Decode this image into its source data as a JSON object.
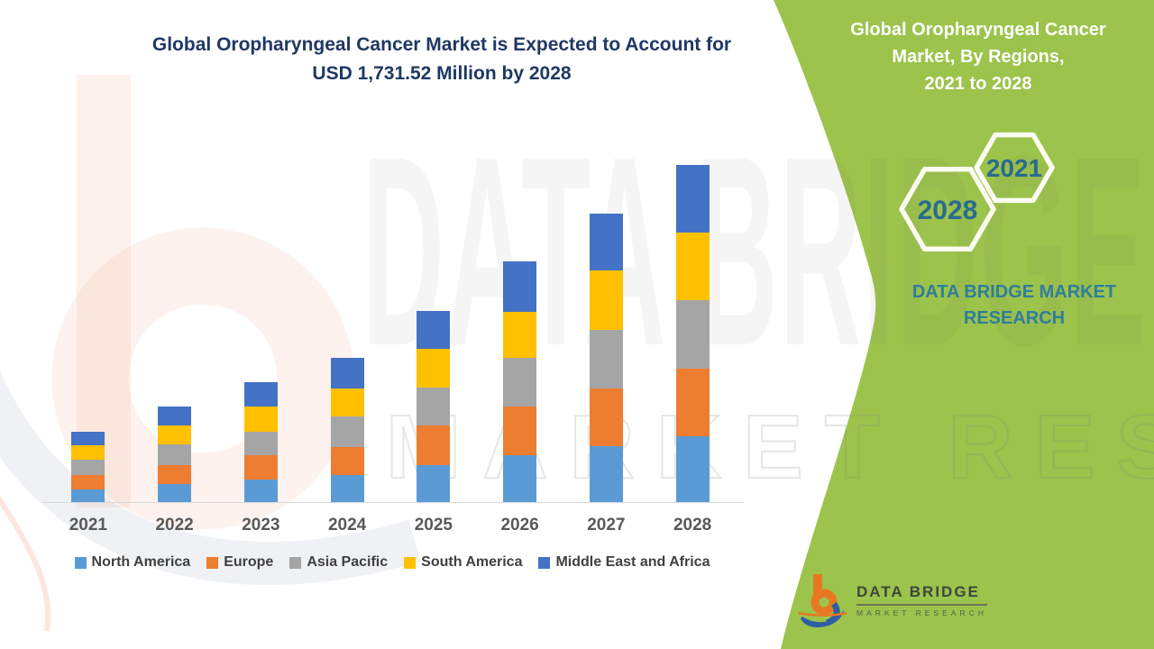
{
  "title": "Global Oropharyngeal Cancer Market is Expected to Account for\nUSD 1,731.52 Million by 2028",
  "side_panel": {
    "heading": "Global Oropharyngeal Cancer\nMarket, By Regions,\n2021 to 2028",
    "hexagons": [
      {
        "label": "2021"
      },
      {
        "label": "2028"
      }
    ],
    "brand_text": "DATA BRIDGE MARKET\nRESEARCH",
    "panel_color": "#9CC34B",
    "hex_text_color": "#296B8E",
    "brand_text_color": "#2E7E9C"
  },
  "footer_logo": {
    "name": "DATA BRIDGE",
    "subtitle": "MARKET RESEARCH",
    "mark_orange": "#E87722",
    "mark_blue": "#2E5FA3"
  },
  "watermark": {
    "row1": "DATA BRIDGE",
    "row2": "MARKET RESEARCH"
  },
  "chart_data": {
    "type": "bar",
    "stacked": true,
    "unit": "USD Million",
    "title": "Global Oropharyngeal Cancer Market is Expected to Account for USD 1,731.52 Million by 2028",
    "categories": [
      "2021",
      "2022",
      "2023",
      "2024",
      "2025",
      "2026",
      "2027",
      "2028"
    ],
    "series": [
      {
        "name": "North America",
        "color": "#5B9BD5",
        "values": [
          64,
          94,
          115,
          140,
          189,
          240,
          289,
          336
        ]
      },
      {
        "name": "Europe",
        "color": "#ED7D31",
        "values": [
          76,
          96,
          125,
          145,
          204,
          250,
          296,
          348
        ]
      },
      {
        "name": "Asia Pacific",
        "color": "#A5A5A5",
        "values": [
          77,
          105,
          122,
          154,
          194,
          252,
          298,
          352
        ]
      },
      {
        "name": "South America",
        "color": "#FFC000",
        "values": [
          73,
          100,
          131,
          144,
          199,
          237,
          305,
          350
        ]
      },
      {
        "name": "Middle East and Africa",
        "color": "#4472C4",
        "values": [
          73,
          94,
          124,
          157,
          194,
          258,
          292,
          345.52
        ]
      }
    ],
    "totals": [
      363,
      489,
      617,
      740,
      980,
      1237,
      1480,
      1731.52
    ],
    "ylim": [
      0,
      1830
    ],
    "gridlines": false,
    "y_axis_visible": false,
    "legend_position": "bottom"
  }
}
